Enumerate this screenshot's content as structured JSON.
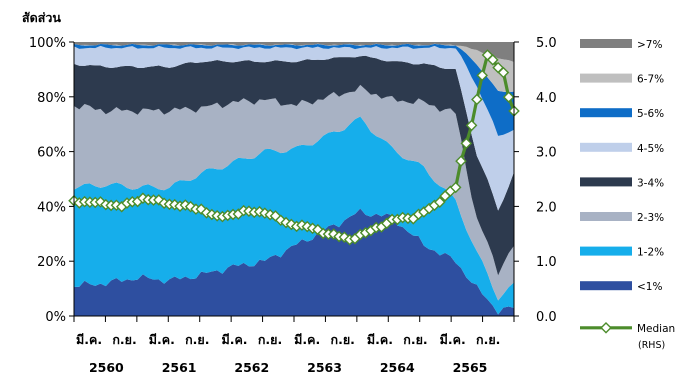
{
  "chart_data": {
    "type": "area",
    "stacked": true,
    "ylabel": "สัดส่วน",
    "left_axis": {
      "ticks": [
        "0%",
        "20%",
        "40%",
        "60%",
        "80%",
        "100%"
      ],
      "range": [
        0,
        100
      ]
    },
    "right_axis": {
      "ticks": [
        "0.0",
        "1.0",
        "2.0",
        "3.0",
        "4.0",
        "5.0"
      ],
      "range": [
        0,
        5
      ]
    },
    "x_tick_labels": [
      "มี.ค.",
      "ก.ย.",
      "มี.ค.",
      "ก.ย.",
      "มี.ค.",
      "ก.ย.",
      "มี.ค.",
      "ก.ย.",
      "มี.ค.",
      "ก.ย.",
      "มี.ค.",
      "ก.ย."
    ],
    "x_year_labels": [
      "2560",
      "2561",
      "2562",
      "2563",
      "2564",
      "2565"
    ],
    "n_points": 84,
    "keyframes_note_removed": true,
    "series": [
      {
        "name": "<1%",
        "color": "#2E4FA0",
        "keys": [
          [
            0,
            11
          ],
          [
            6,
            12
          ],
          [
            12,
            14
          ],
          [
            18,
            13
          ],
          [
            24,
            15
          ],
          [
            30,
            18
          ],
          [
            36,
            20
          ],
          [
            42,
            26
          ],
          [
            48,
            32
          ],
          [
            54,
            38
          ],
          [
            60,
            36
          ],
          [
            66,
            26
          ],
          [
            72,
            20
          ],
          [
            76,
            10
          ],
          [
            80,
            2
          ],
          [
            83,
            3
          ]
        ]
      },
      {
        "name": "1-2%",
        "color": "#16AEEB",
        "keys": [
          [
            0,
            36
          ],
          [
            6,
            36
          ],
          [
            12,
            33
          ],
          [
            18,
            34
          ],
          [
            24,
            37
          ],
          [
            30,
            38
          ],
          [
            36,
            40
          ],
          [
            42,
            35
          ],
          [
            48,
            34
          ],
          [
            54,
            34
          ],
          [
            60,
            25
          ],
          [
            66,
            28
          ],
          [
            72,
            22
          ],
          [
            76,
            13
          ],
          [
            80,
            5
          ],
          [
            83,
            8
          ]
        ]
      },
      {
        "name": "2-3%",
        "color": "#A8B2C4",
        "keys": [
          [
            0,
            30
          ],
          [
            6,
            27
          ],
          [
            12,
            28
          ],
          [
            18,
            28
          ],
          [
            24,
            24
          ],
          [
            30,
            22
          ],
          [
            36,
            19
          ],
          [
            42,
            16
          ],
          [
            48,
            14
          ],
          [
            54,
            11
          ],
          [
            60,
            18
          ],
          [
            66,
            24
          ],
          [
            72,
            32
          ],
          [
            76,
            12
          ],
          [
            80,
            10
          ],
          [
            83,
            14
          ]
        ]
      },
      {
        "name": "3-4%",
        "color": "#2D3A4E",
        "keys": [
          [
            0,
            15
          ],
          [
            6,
            16
          ],
          [
            12,
            16
          ],
          [
            18,
            16
          ],
          [
            24,
            17
          ],
          [
            30,
            15
          ],
          [
            36,
            14
          ],
          [
            42,
            16
          ],
          [
            48,
            14
          ],
          [
            54,
            12
          ],
          [
            60,
            14
          ],
          [
            66,
            14
          ],
          [
            72,
            16
          ],
          [
            76,
            24
          ],
          [
            80,
            22
          ],
          [
            83,
            27
          ]
        ]
      },
      {
        "name": "4-5%",
        "color": "#BFCFEA",
        "keys": [
          [
            0,
            6
          ],
          [
            6,
            7
          ],
          [
            12,
            7
          ],
          [
            18,
            7
          ],
          [
            24,
            5
          ],
          [
            30,
            5
          ],
          [
            36,
            5
          ],
          [
            42,
            5
          ],
          [
            48,
            4
          ],
          [
            54,
            3
          ],
          [
            60,
            5
          ],
          [
            66,
            6
          ],
          [
            72,
            8
          ],
          [
            76,
            25
          ],
          [
            80,
            27
          ],
          [
            83,
            16
          ]
        ]
      },
      {
        "name": "5-6%",
        "color": "#0E6DC7",
        "keys": [
          [
            0,
            1
          ],
          [
            6,
            1
          ],
          [
            12,
            1
          ],
          [
            18,
            1
          ],
          [
            24,
            1
          ],
          [
            30,
            1
          ],
          [
            36,
            1
          ],
          [
            42,
            1
          ],
          [
            48,
            1
          ],
          [
            54,
            1
          ],
          [
            60,
            1
          ],
          [
            66,
            1
          ],
          [
            72,
            1
          ],
          [
            76,
            8
          ],
          [
            80,
            16
          ],
          [
            83,
            14
          ]
        ]
      },
      {
        "name": "6-7%",
        "color": "#BFBFBF",
        "keys": [
          [
            0,
            0
          ],
          [
            6,
            0
          ],
          [
            12,
            0
          ],
          [
            18,
            0
          ],
          [
            24,
            0
          ],
          [
            30,
            0
          ],
          [
            36,
            0
          ],
          [
            42,
            0
          ],
          [
            48,
            0
          ],
          [
            54,
            0
          ],
          [
            60,
            0
          ],
          [
            66,
            0
          ],
          [
            72,
            0
          ],
          [
            76,
            5
          ],
          [
            80,
            12
          ],
          [
            83,
            11
          ]
        ]
      },
      {
        "name": ">7%",
        "color": "#7F7F7F",
        "keys": [
          [
            0,
            1
          ],
          [
            6,
            1
          ],
          [
            12,
            1
          ],
          [
            18,
            1
          ],
          [
            24,
            1
          ],
          [
            30,
            1
          ],
          [
            36,
            1
          ],
          [
            42,
            1
          ],
          [
            48,
            1
          ],
          [
            54,
            1
          ],
          [
            60,
            1
          ],
          [
            66,
            1
          ],
          [
            72,
            1
          ],
          [
            76,
            3
          ],
          [
            80,
            6
          ],
          [
            83,
            7
          ]
        ]
      }
    ],
    "median": {
      "name": "Median",
      "name_suffix": "(RHS)",
      "color": "#4C8C2B",
      "axis": "right",
      "keys": [
        [
          0,
          2.1
        ],
        [
          6,
          2.05
        ],
        [
          9,
          2.0
        ],
        [
          13,
          2.15
        ],
        [
          18,
          2.05
        ],
        [
          24,
          1.95
        ],
        [
          27,
          1.8
        ],
        [
          32,
          1.9
        ],
        [
          36,
          1.9
        ],
        [
          40,
          1.7
        ],
        [
          45,
          1.6
        ],
        [
          48,
          1.5
        ],
        [
          52,
          1.4
        ],
        [
          56,
          1.55
        ],
        [
          60,
          1.75
        ],
        [
          64,
          1.8
        ],
        [
          68,
          2.0
        ],
        [
          70,
          2.2
        ],
        [
          72,
          2.35
        ],
        [
          73,
          2.8
        ],
        [
          75,
          3.5
        ],
        [
          77,
          4.4
        ],
        [
          78,
          4.75
        ],
        [
          79,
          4.65
        ],
        [
          81,
          4.45
        ],
        [
          82,
          4.0
        ],
        [
          83,
          3.75
        ]
      ]
    }
  }
}
